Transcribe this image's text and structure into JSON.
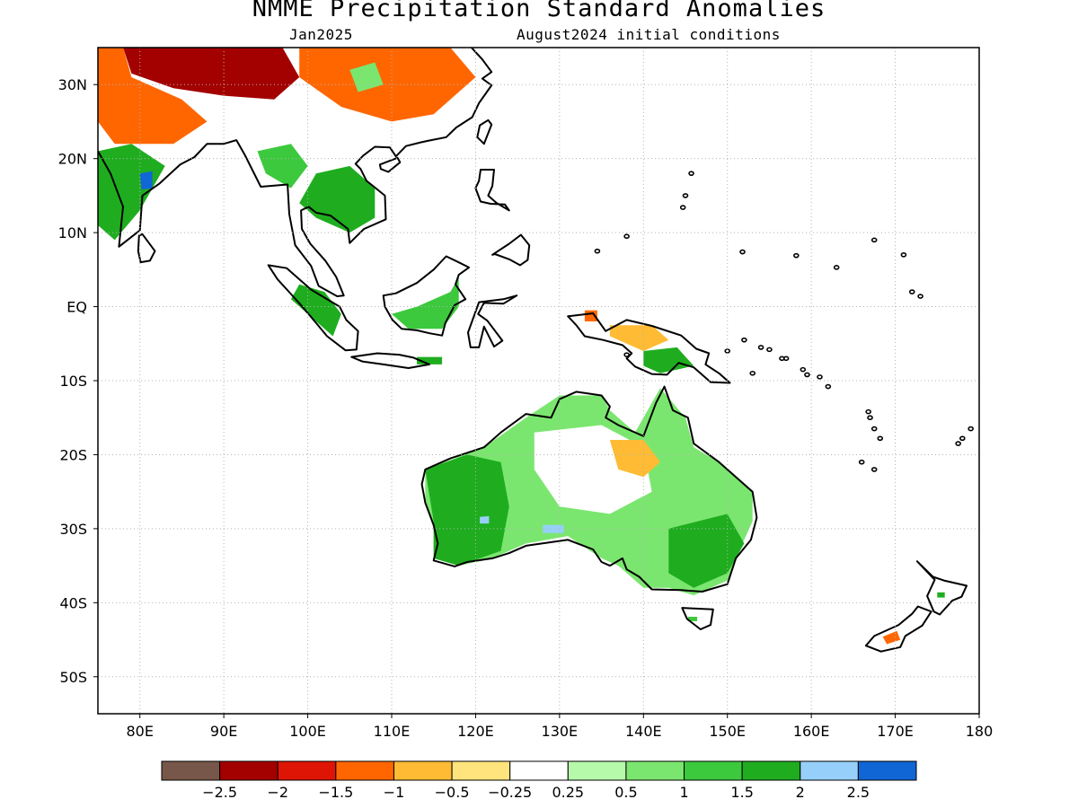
{
  "header": {
    "title": "NMME Precipitation Standard Anomalies",
    "subtitle_left": "Jan2025",
    "subtitle_right": "August2024 initial conditions"
  },
  "map": {
    "lon_range": [
      75,
      180
    ],
    "lat_range": [
      -55,
      35
    ],
    "grid": true,
    "lon_ticks": [
      {
        "value": 80,
        "label": "80E"
      },
      {
        "value": 90,
        "label": "90E"
      },
      {
        "value": 100,
        "label": "100E"
      },
      {
        "value": 110,
        "label": "110E"
      },
      {
        "value": 120,
        "label": "120E"
      },
      {
        "value": 130,
        "label": "130E"
      },
      {
        "value": 140,
        "label": "140E"
      },
      {
        "value": 150,
        "label": "150E"
      },
      {
        "value": 160,
        "label": "160E"
      },
      {
        "value": 170,
        "label": "170E"
      },
      {
        "value": 180,
        "label": "180"
      }
    ],
    "lat_ticks": [
      {
        "value": 30,
        "label": "30N"
      },
      {
        "value": 20,
        "label": "20N"
      },
      {
        "value": 10,
        "label": "10N"
      },
      {
        "value": 0,
        "label": "EQ"
      },
      {
        "value": -10,
        "label": "10S"
      },
      {
        "value": -20,
        "label": "20S"
      },
      {
        "value": -30,
        "label": "30S"
      },
      {
        "value": -40,
        "label": "40S"
      },
      {
        "value": -50,
        "label": "50S"
      }
    ],
    "anomaly_regions": [
      {
        "name": "tibet-dry",
        "class": -2,
        "lonlat": [
          [
            78,
            35
          ],
          [
            97,
            35
          ],
          [
            99,
            31
          ],
          [
            96,
            28
          ],
          [
            90,
            28.5
          ],
          [
            84,
            29.5
          ],
          [
            79,
            31.5
          ]
        ]
      },
      {
        "name": "china-dry",
        "class": -1,
        "lonlat": [
          [
            99,
            35
          ],
          [
            117,
            35
          ],
          [
            120,
            31
          ],
          [
            115,
            26
          ],
          [
            110,
            25
          ],
          [
            104,
            27
          ],
          [
            99,
            31
          ]
        ]
      },
      {
        "name": "india-north-dry",
        "class": -1,
        "lonlat": [
          [
            75,
            35
          ],
          [
            78,
            35
          ],
          [
            79,
            31
          ],
          [
            85,
            28
          ],
          [
            88,
            25
          ],
          [
            84,
            22
          ],
          [
            77,
            22
          ],
          [
            75,
            25
          ]
        ]
      },
      {
        "name": "china-wet-patch",
        "class": 0.5,
        "lonlat": [
          [
            105,
            32
          ],
          [
            108,
            33
          ],
          [
            109,
            30
          ],
          [
            106,
            29
          ]
        ]
      },
      {
        "name": "india-east-wet",
        "class": 1.5,
        "lonlat": [
          [
            75,
            21
          ],
          [
            79,
            22
          ],
          [
            83,
            19
          ],
          [
            80,
            13
          ],
          [
            77,
            9
          ],
          [
            75,
            11
          ]
        ]
      },
      {
        "name": "india-blue",
        "class": 2.5,
        "lonlat": [
          [
            80,
            18
          ],
          [
            81.5,
            18.3
          ],
          [
            81.5,
            16
          ],
          [
            80.2,
            15.8
          ]
        ]
      },
      {
        "name": "indochina-wet",
        "class": 1.5,
        "lonlat": [
          [
            101,
            18
          ],
          [
            105,
            19
          ],
          [
            108,
            16
          ],
          [
            108,
            12
          ],
          [
            105,
            10
          ],
          [
            101,
            12
          ],
          [
            99,
            14
          ]
        ]
      },
      {
        "name": "myanmar-wet",
        "class": 1,
        "lonlat": [
          [
            94,
            21
          ],
          [
            98,
            22
          ],
          [
            100,
            19
          ],
          [
            98,
            16
          ],
          [
            95,
            18
          ]
        ]
      },
      {
        "name": "sumatra-wet",
        "class": 1.5,
        "lonlat": [
          [
            99,
            3
          ],
          [
            102,
            2
          ],
          [
            104,
            -1
          ],
          [
            103,
            -4
          ],
          [
            101,
            -2
          ],
          [
            98,
            1
          ]
        ]
      },
      {
        "name": "borneo-wet",
        "class": 1,
        "lonlat": [
          [
            110,
            -1
          ],
          [
            113,
            0
          ],
          [
            117,
            2
          ],
          [
            118,
            4
          ],
          [
            118,
            0
          ],
          [
            116,
            -3
          ],
          [
            112,
            -3
          ]
        ]
      },
      {
        "name": "java-wet",
        "class": 1.5,
        "lonlat": [
          [
            113,
            -6.8
          ],
          [
            116,
            -6.8
          ],
          [
            116,
            -7.8
          ],
          [
            113,
            -7.8
          ]
        ]
      },
      {
        "name": "png-dry",
        "class": -0.5,
        "lonlat": [
          [
            136,
            -2.5
          ],
          [
            141,
            -2.5
          ],
          [
            143,
            -4.5
          ],
          [
            140,
            -6
          ],
          [
            136,
            -4
          ]
        ]
      },
      {
        "name": "png-dry-spot",
        "class": -1,
        "lonlat": [
          [
            133,
            -0.5
          ],
          [
            134.5,
            -0.5
          ],
          [
            134.5,
            -2
          ],
          [
            133,
            -2
          ]
        ]
      },
      {
        "name": "png-wet",
        "class": 1.5,
        "lonlat": [
          [
            140,
            -6
          ],
          [
            144,
            -5.5
          ],
          [
            146,
            -8
          ],
          [
            142,
            -9
          ],
          [
            140,
            -8
          ]
        ]
      },
      {
        "name": "australia-wet",
        "class": 0.5,
        "lonlat": [
          [
            114,
            -22
          ],
          [
            121,
            -19
          ],
          [
            126,
            -15
          ],
          [
            130,
            -12
          ],
          [
            135,
            -12
          ],
          [
            136,
            -14
          ],
          [
            139,
            -17
          ],
          [
            142,
            -11
          ],
          [
            145,
            -15
          ],
          [
            146,
            -19
          ],
          [
            149,
            -21
          ],
          [
            153,
            -25
          ],
          [
            153,
            -29
          ],
          [
            151,
            -34
          ],
          [
            150,
            -37
          ],
          [
            146,
            -39
          ],
          [
            143,
            -38
          ],
          [
            140,
            -38
          ],
          [
            137,
            -35
          ],
          [
            135,
            -34
          ],
          [
            131,
            -31
          ],
          [
            126,
            -32
          ],
          [
            122,
            -34
          ],
          [
            118,
            -35
          ],
          [
            115,
            -34
          ],
          [
            115,
            -30
          ],
          [
            114,
            -26
          ]
        ]
      },
      {
        "name": "australia-west-strong-wet",
        "class": 1.5,
        "lonlat": [
          [
            114,
            -22
          ],
          [
            119,
            -20
          ],
          [
            123,
            -21
          ],
          [
            124,
            -27
          ],
          [
            123,
            -33
          ],
          [
            118,
            -35
          ],
          [
            115,
            -34
          ],
          [
            115,
            -29
          ]
        ]
      },
      {
        "name": "australia-southeast-wet",
        "class": 1.5,
        "lonlat": [
          [
            143,
            -30
          ],
          [
            150,
            -28
          ],
          [
            152,
            -32
          ],
          [
            150,
            -36
          ],
          [
            146,
            -38
          ],
          [
            143,
            -36
          ]
        ]
      },
      {
        "name": "australia-interior-neutral",
        "class": 0,
        "lonlat": [
          [
            127,
            -17
          ],
          [
            135,
            -16
          ],
          [
            140,
            -19
          ],
          [
            141,
            -25
          ],
          [
            136,
            -28
          ],
          [
            130,
            -27
          ],
          [
            127,
            -22
          ]
        ]
      },
      {
        "name": "australia-interior-dry",
        "class": -0.5,
        "lonlat": [
          [
            136,
            -18
          ],
          [
            140,
            -18
          ],
          [
            142,
            -21
          ],
          [
            140,
            -23
          ],
          [
            137,
            -22
          ]
        ]
      },
      {
        "name": "australia-blue-1",
        "class": 2,
        "lonlat": [
          [
            120.5,
            -28.4
          ],
          [
            121.6,
            -28.3
          ],
          [
            121.6,
            -29.3
          ],
          [
            120.5,
            -29.3
          ]
        ]
      },
      {
        "name": "australia-blue-2",
        "class": 2,
        "lonlat": [
          [
            128,
            -29.5
          ],
          [
            130.5,
            -29.5
          ],
          [
            130.5,
            -30.6
          ],
          [
            128,
            -30.6
          ]
        ]
      },
      {
        "name": "nz-south-dry",
        "class": -1,
        "lonlat": [
          [
            168.5,
            -44.6
          ],
          [
            170.2,
            -43.8
          ],
          [
            170.6,
            -45
          ],
          [
            169,
            -45.6
          ]
        ]
      },
      {
        "name": "nz-north-wet",
        "class": 1.5,
        "lonlat": [
          [
            175,
            -38.6
          ],
          [
            175.9,
            -38.6
          ],
          [
            175.9,
            -39.3
          ],
          [
            175,
            -39.3
          ]
        ]
      },
      {
        "name": "tasmania-wet",
        "class": 1,
        "lonlat": [
          [
            145.3,
            -41.9
          ],
          [
            146.4,
            -41.9
          ],
          [
            146.4,
            -42.5
          ],
          [
            145.3,
            -42.5
          ]
        ]
      }
    ]
  },
  "colorbar": {
    "colors": [
      "#77574a",
      "#a30000",
      "#de1505",
      "#ff6600",
      "#ffbb33",
      "#ffe47d",
      "#ffffff",
      "#b6f9ab",
      "#7be66f",
      "#3cc93d",
      "#1fad1f",
      "#96d0fa",
      "#1166d5"
    ],
    "labels": [
      "−2.5",
      "−2",
      "−1.5",
      "−1",
      "−0.5",
      "−0.25",
      "0.25",
      "0.5",
      "1",
      "1.5",
      "2",
      "2.5"
    ]
  }
}
